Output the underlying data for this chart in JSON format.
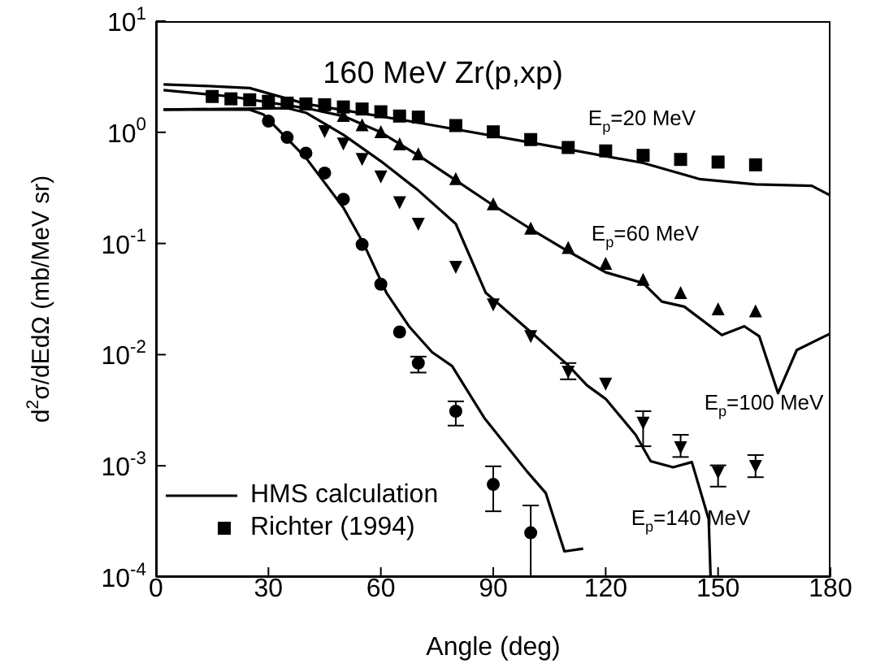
{
  "chart_data": {
    "type": "line",
    "title": "160 MeV Zr(p,xp)",
    "xlabel": "Angle (deg)",
    "ylabel": "d$^{2}$σ/dEdΩ (mb/MeV sr)",
    "log": "y",
    "legend": "bottom left",
    "xlim": [
      0,
      180
    ],
    "xticks": [
      0,
      30,
      60,
      90,
      120,
      150,
      180
    ],
    "ylim": [
      0.0001,
      10
    ],
    "yticks": [
      {
        "value": 0.0001,
        "label": "10$^{-4}$"
      },
      {
        "value": 0.001,
        "label": "10$^{-3}$"
      },
      {
        "value": 0.01,
        "label": "10$^{-2}$"
      },
      {
        "value": 0.1,
        "label": "10$^{-1}$"
      },
      {
        "value": 1,
        "label": "10$^{0}$"
      },
      {
        "value": 10,
        "label": "10$^{1}$"
      }
    ],
    "series": [
      {
        "name": "HMS calculation",
        "color": "#000000",
        "marker": "none",
        "line_style": "solid",
        "x": [
          2,
          15,
          25,
          40,
          70,
          100,
          130,
          145,
          160,
          175,
          180
        ],
        "values": [
          2.7,
          2.6,
          2.5,
          1.8,
          1.22,
          0.81,
          0.53,
          0.38,
          0.34,
          0.33,
          0.27
        ]
      },
      {
        "color": "#000000",
        "marker": "none",
        "line_style": "solid",
        "x": [
          2,
          20,
          40,
          50,
          60,
          70,
          80,
          90,
          100,
          110,
          120,
          130,
          135,
          141,
          151,
          157,
          161,
          166,
          171,
          180
        ],
        "values": [
          2.4,
          2.1,
          1.65,
          1.4,
          1.0,
          0.62,
          0.37,
          0.22,
          0.135,
          0.085,
          0.055,
          0.044,
          0.03,
          0.027,
          0.015,
          0.018,
          0.0146,
          0.0045,
          0.011,
          0.0155
        ]
      },
      {
        "color": "#000000",
        "marker": "none",
        "line_style": "solid",
        "x": [
          2,
          35,
          40,
          50,
          60,
          70,
          80,
          88,
          100,
          110,
          115,
          120,
          128,
          132,
          138,
          143,
          147.5,
          148
        ],
        "values": [
          1.6,
          1.65,
          1.5,
          0.95,
          0.55,
          0.3,
          0.15,
          0.036,
          0.016,
          0.008,
          0.0053,
          0.004,
          0.0019,
          0.0011,
          0.00097,
          0.00108,
          0.00033,
          0.0001
        ]
      },
      {
        "color": "#000000",
        "marker": "none",
        "line_style": "solid",
        "x": [
          2,
          25,
          28.6,
          40,
          50,
          55.5,
          61.5,
          67.5,
          73.7,
          79,
          87.6,
          99,
          104,
          109,
          114
        ],
        "values": [
          1.6,
          1.6,
          1.45,
          0.59,
          0.21,
          0.098,
          0.036,
          0.018,
          0.0105,
          0.0079,
          0.0027,
          0.00089,
          0.00057,
          0.00017,
          0.00018
        ]
      },
      {
        "type": "scatter",
        "name": "Richter (1994)",
        "color": "#000000",
        "marker": "square",
        "x": [
          15,
          20,
          25,
          30,
          35,
          40,
          45,
          50,
          55,
          60,
          65,
          70,
          80,
          90,
          100,
          110,
          120,
          130,
          140,
          150,
          160
        ],
        "values": [
          2.1,
          2.0,
          1.96,
          1.9,
          1.83,
          1.8,
          1.77,
          1.69,
          1.62,
          1.53,
          1.4,
          1.37,
          1.15,
          1.01,
          0.86,
          0.73,
          0.68,
          0.62,
          0.57,
          0.54,
          0.51
        ]
      },
      {
        "type": "scatter",
        "color": "#000000",
        "marker": "triangle",
        "x": [
          50,
          55,
          60,
          65,
          70,
          80,
          90,
          100,
          110,
          120,
          130,
          140,
          150,
          160
        ],
        "values": [
          1.37,
          1.13,
          0.98,
          0.76,
          0.62,
          0.37,
          0.22,
          0.133,
          0.089,
          0.064,
          0.046,
          0.035,
          0.025,
          0.024
        ]
      },
      {
        "type": "scatter",
        "color": "#000000",
        "marker": "triangle-down",
        "x": [
          45,
          50,
          55,
          60,
          65,
          70,
          80,
          90,
          100,
          110,
          120,
          130,
          140,
          150,
          160
        ],
        "values": [
          1.05,
          0.81,
          0.59,
          0.41,
          0.24,
          0.154,
          0.063,
          0.029,
          0.015,
          0.0072,
          0.0056,
          0.0025,
          0.0015,
          0.0009,
          0.00102
        ],
        "errors": [
          null,
          null,
          null,
          null,
          null,
          null,
          null,
          null,
          null,
          [
            0.006,
            0.0084
          ],
          null,
          [
            0.0015,
            0.0031
          ],
          [
            0.0012,
            0.0019
          ],
          [
            0.00065,
            0.00101
          ],
          [
            0.00079,
            0.00125
          ]
        ]
      },
      {
        "type": "scatter",
        "color": "#000000",
        "marker": "circle",
        "x": [
          30,
          35,
          40,
          45,
          50,
          55,
          60,
          65,
          70,
          80,
          90,
          100
        ],
        "values": [
          1.26,
          0.9,
          0.65,
          0.43,
          0.25,
          0.098,
          0.043,
          0.016,
          0.0084,
          0.0031,
          0.00068,
          0.00025
        ],
        "errors": [
          null,
          null,
          null,
          null,
          null,
          null,
          null,
          null,
          [
            0.0069,
            0.0096
          ],
          [
            0.0023,
            0.0038
          ],
          [
            0.00039,
            0.00099
          ],
          [
            0.0001,
            0.00044
          ]
        ]
      }
    ],
    "annotations": [
      "E$_{p}$=20 MeV",
      "E$_{p}$=60 MeV",
      "E$_{p}$=100 MeV",
      "E$_{p}$=140 MeV"
    ]
  }
}
